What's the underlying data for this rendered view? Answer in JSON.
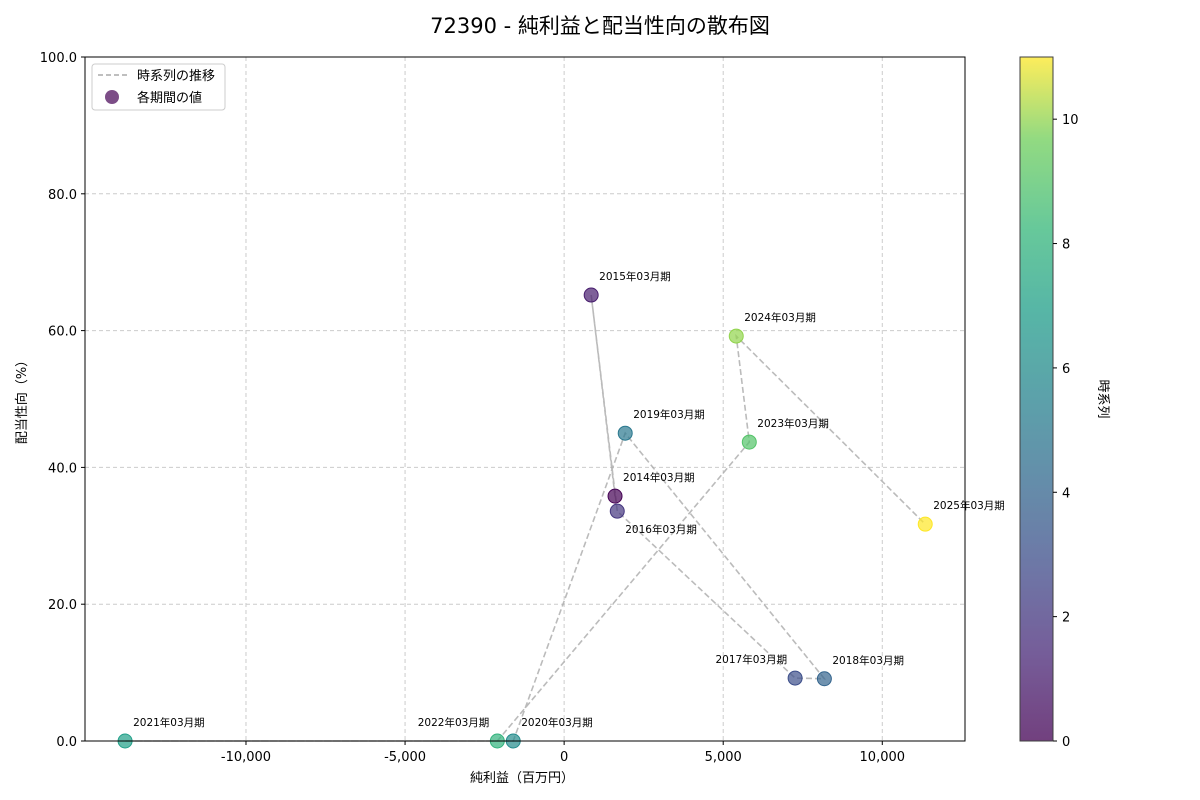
{
  "chart_data": {
    "type": "scatter",
    "title": "72390 - 純利益と配当性向の散布図",
    "xlabel": "純利益（百万円）",
    "ylabel": "配当性向（%）",
    "xlim": [
      -15060,
      12600
    ],
    "ylim": [
      0,
      100
    ],
    "xticks": [
      -10000,
      -5000,
      0,
      5000,
      10000
    ],
    "xtick_labels": [
      "-10,000",
      "-5,000",
      "0",
      "5,000",
      "10,000"
    ],
    "yticks": [
      0,
      20,
      40,
      60,
      80,
      100
    ],
    "ytick_labels": [
      "0.0",
      "20.0",
      "40.0",
      "60.0",
      "80.0",
      "100.0"
    ],
    "grid": true,
    "legend": {
      "placement": "top-left",
      "entries": [
        "時系列の推移",
        "各期間の値"
      ]
    },
    "colorbar": {
      "label": "時系列",
      "range": [
        0,
        11
      ],
      "ticks": [
        0,
        2,
        4,
        6,
        8,
        10
      ],
      "tick_labels": [
        "0",
        "2",
        "4",
        "6",
        "8",
        "10"
      ],
      "colormap": "viridis"
    },
    "points": [
      {
        "label": "2014年03月期",
        "x": 1600,
        "y": 35.8,
        "t": 0
      },
      {
        "label": "2015年03月期",
        "x": 850,
        "y": 65.2,
        "t": 1
      },
      {
        "label": "2016年03月期",
        "x": 1670,
        "y": 33.6,
        "t": 2
      },
      {
        "label": "2017年03月期",
        "x": 7260,
        "y": 9.2,
        "t": 3
      },
      {
        "label": "2018年03月期",
        "x": 8180,
        "y": 9.1,
        "t": 4
      },
      {
        "label": "2019年03月期",
        "x": 1920,
        "y": 45.0,
        "t": 5
      },
      {
        "label": "2020年03月期",
        "x": -1600,
        "y": 0.0,
        "t": 6
      },
      {
        "label": "2021年03月期",
        "x": -13800,
        "y": 0.0,
        "t": 7
      },
      {
        "label": "2022年03月期",
        "x": -2100,
        "y": 0.0,
        "t": 8
      },
      {
        "label": "2023年03月期",
        "x": 5820,
        "y": 43.7,
        "t": 9
      },
      {
        "label": "2024年03月期",
        "x": 5410,
        "y": 59.2,
        "t": 10
      },
      {
        "label": "2025年03月期",
        "x": 11350,
        "y": 31.7,
        "t": 11
      }
    ]
  }
}
